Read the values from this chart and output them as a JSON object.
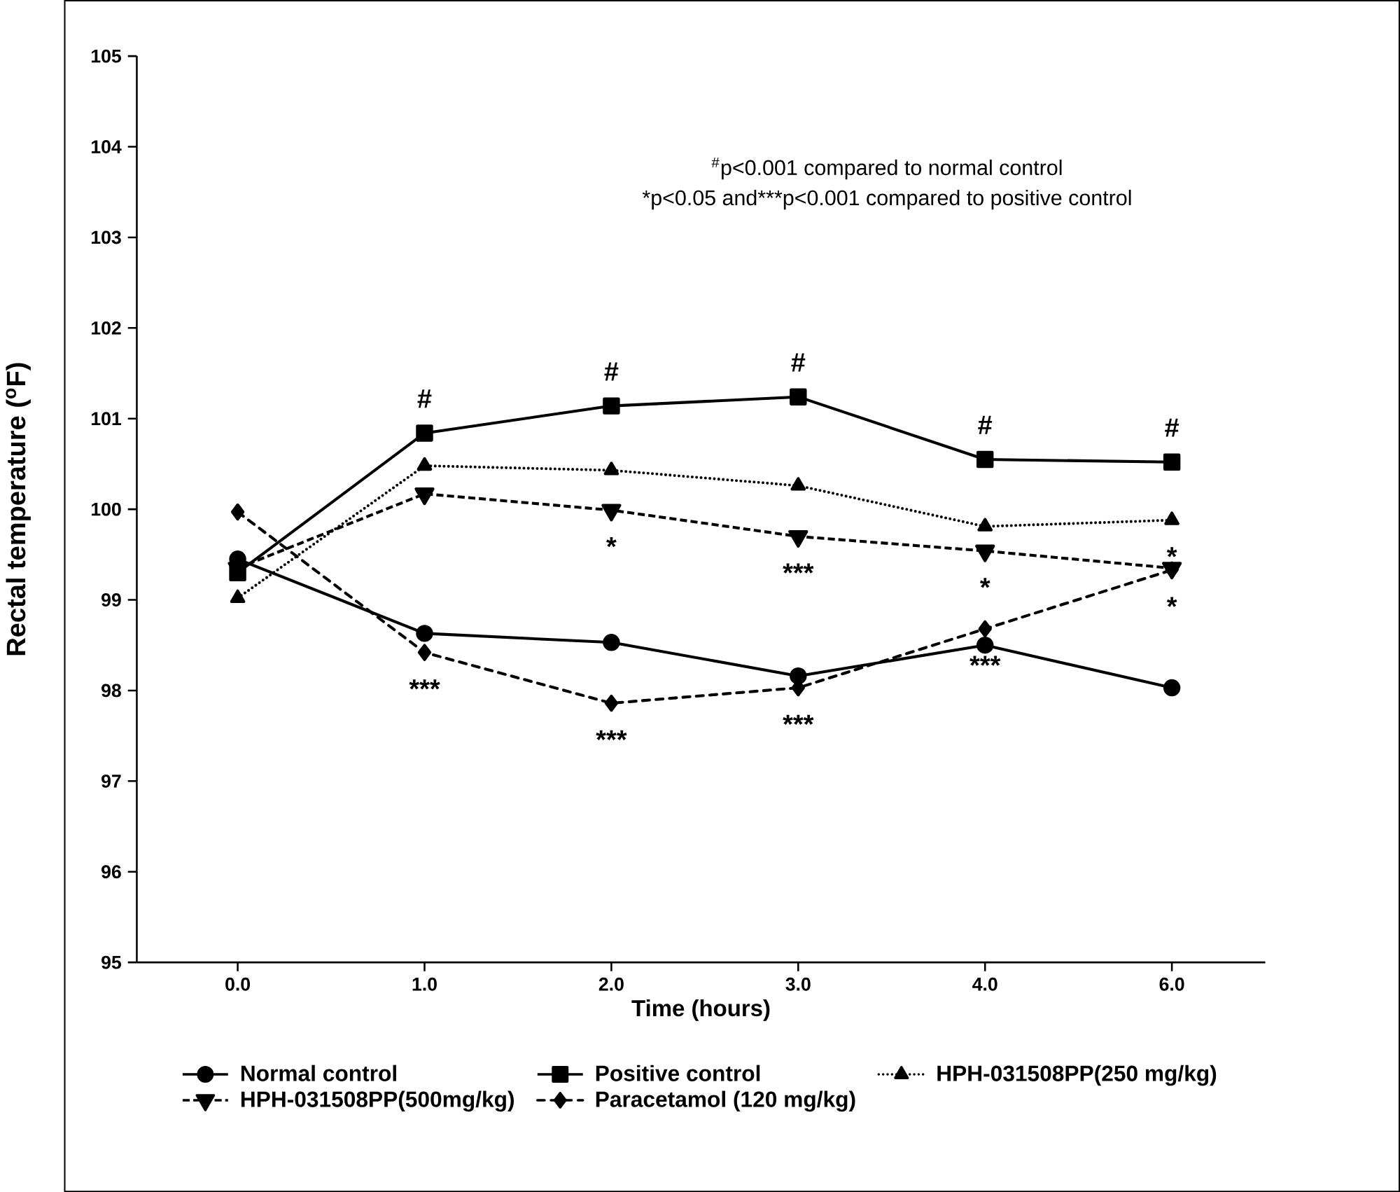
{
  "chart_data": {
    "type": "line",
    "xlabel": "Time (hours)",
    "ylabel": "Rectal temperature ($^{o}$F)",
    "categories": [
      "0.0",
      "1.0",
      "2.0",
      "3.0",
      "4.0",
      "6.0"
    ],
    "series": [
      {
        "name": "Normal control",
        "color": "#000000",
        "marker": "circle",
        "line_style": "solid",
        "values": [
          99.45,
          98.63,
          98.53,
          98.16,
          98.5,
          98.03
        ]
      },
      {
        "name": "Positive control",
        "color": "#000000",
        "marker": "square",
        "line_style": "solid",
        "values": [
          99.3,
          100.84,
          101.14,
          101.24,
          100.55,
          100.52
        ]
      },
      {
        "name": "HPH-031508PP(250 mg/kg)",
        "color": "#000000",
        "marker": "triangle",
        "line_style": "dotted",
        "values": [
          99.02,
          100.48,
          100.43,
          100.26,
          99.81,
          99.88
        ]
      },
      {
        "name": "HPH-031508PP(500mg/kg)",
        "color": "#000000",
        "marker": "triangle-down",
        "line_style": "dashed",
        "values": [
          99.35,
          100.17,
          99.99,
          99.7,
          99.54,
          99.35
        ]
      },
      {
        "name": "Paracetamol (120 mg/kg)",
        "color": "#000000",
        "marker": "diamond",
        "line_style": "dashdot",
        "values": [
          99.97,
          98.42,
          97.86,
          98.03,
          98.68,
          99.33
        ]
      }
    ],
    "ylim": [
      95,
      105
    ],
    "yticks": [
      95,
      96,
      97,
      98,
      99,
      100,
      101,
      102,
      103,
      104,
      105
    ],
    "grid": false,
    "legend": "bottom",
    "annotations": [
      "$^{#}$p<0.001 compared to  normal control",
      "*p<0.05 and***p<0.001 compared to positive control",
      {
        "text": "#",
        "x": "1.0",
        "y": 100.84
      },
      {
        "text": "#",
        "x": "2.0",
        "y": 101.14
      },
      {
        "text": "#",
        "x": "3.0",
        "y": 101.24
      },
      {
        "text": "#",
        "x": "4.0",
        "y": 100.55
      },
      {
        "text": "#",
        "x": "6.0",
        "y": 100.52
      },
      {
        "text": "*",
        "x": "2.0",
        "y": 99.99
      },
      {
        "text": "***",
        "x": "3.0",
        "y": 99.7
      },
      {
        "text": "*",
        "x": "4.0",
        "y": 99.54
      },
      {
        "text": "*",
        "x": "6.0",
        "y": 99.88
      },
      {
        "text": "*",
        "x": "6.0",
        "y": 99.33
      },
      {
        "text": "***",
        "x": "1.0",
        "y": 98.42
      },
      {
        "text": "***",
        "x": "2.0",
        "y": 97.86
      },
      {
        "text": "***",
        "x": "3.0",
        "y": 98.03
      },
      {
        "text": "***",
        "x": "4.0",
        "y": 98.68
      }
    ]
  }
}
